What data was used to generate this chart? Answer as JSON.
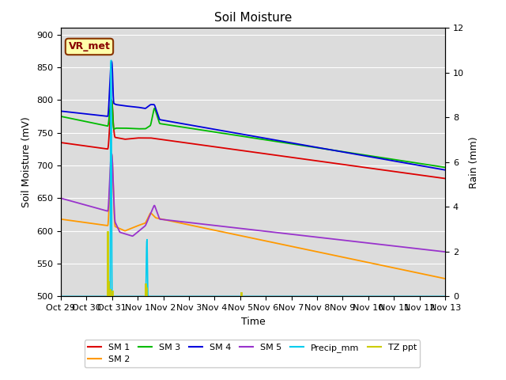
{
  "title": "Soil Moisture",
  "xlabel": "Time",
  "ylabel_left": "Soil Moisture (mV)",
  "ylabel_right": "Rain (mm)",
  "ylim_left": [
    500,
    910
  ],
  "ylim_right": [
    0,
    12
  ],
  "x_tick_labels": [
    "Oct 29",
    "Oct 30",
    "Oct 31",
    "Nov 1",
    "Nov 2",
    "Nov 3",
    "Nov 4",
    "Nov 5",
    "Nov 6",
    "Nov 7",
    "Nov 8",
    "Nov 9",
    "Nov 10",
    "Nov 11",
    "Nov 12",
    "Nov 13"
  ],
  "sm1_color": "#dd0000",
  "sm2_color": "#ff9900",
  "sm3_color": "#00bb00",
  "sm4_color": "#0000dd",
  "sm5_color": "#9933cc",
  "precip_color": "#00ccee",
  "tz_color": "#cccc00",
  "bg_color": "#dcdcdc",
  "grid_color": "#ffffff",
  "annotation": {
    "text": "VR_met",
    "facecolor": "#ffffaa",
    "edgecolor": "#883300",
    "textcolor": "#880000"
  },
  "legend_row1": [
    "SM 1",
    "SM 2",
    "SM 3",
    "SM 4",
    "SM 5",
    "Precip_mm"
  ],
  "legend_row2": [
    "TZ ppt"
  ]
}
